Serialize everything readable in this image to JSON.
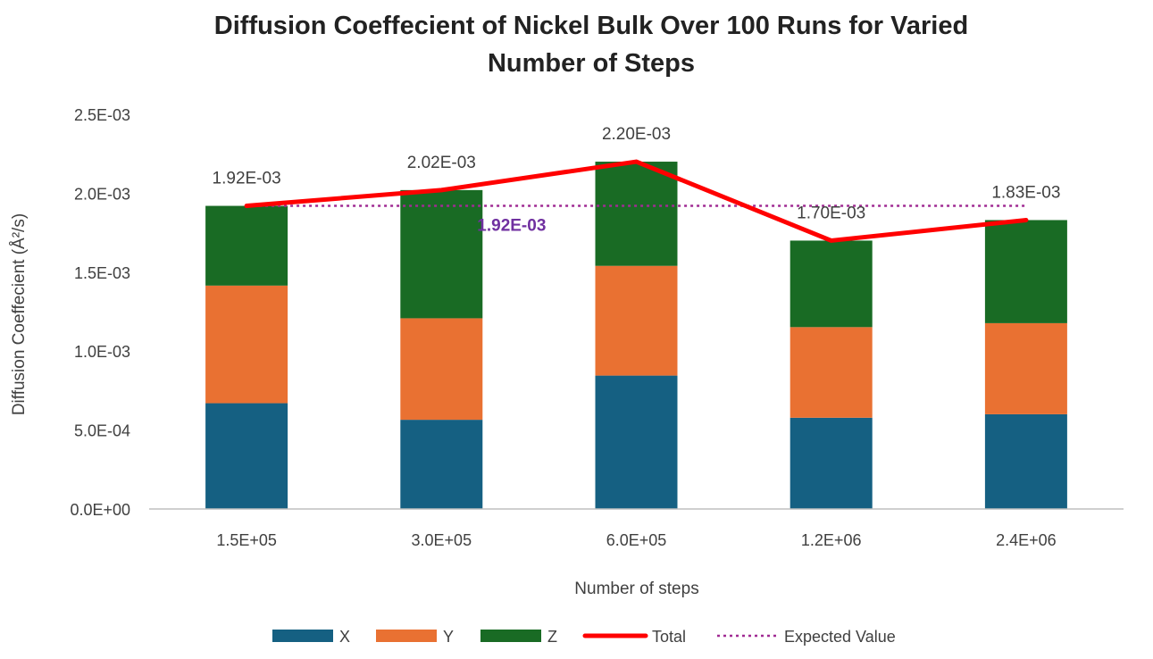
{
  "chart_data": {
    "type": "bar",
    "stacked": true,
    "title": "Diffusion Coeffecient of Nickel Bulk Over 100 Runs for Varied Number of Steps",
    "title_lines": [
      "Diffusion Coeffecient of Nickel Bulk Over 100 Runs for Varied",
      "Number of Steps"
    ],
    "xlabel": "Number of steps",
    "ylabel": "Diffusion Coeffecient (Å²/s)",
    "categories": [
      "1.5E+05",
      "3.0E+05",
      "6.0E+05",
      "1.2E+06",
      "2.4E+06"
    ],
    "ylim": [
      0,
      0.0025
    ],
    "yticks": [
      0,
      0.0005,
      0.001,
      0.0015,
      0.002,
      0.0025
    ],
    "ytick_labels": [
      "0.0E+00",
      "5.0E-04",
      "1.0E-03",
      "1.5E-03",
      "2.0E-03",
      "2.5E-03"
    ],
    "grid": false,
    "series": [
      {
        "name": "X",
        "kind": "bar",
        "color": "#156082",
        "values": [
          0.00067,
          0.000565,
          0.000845,
          0.000578,
          0.0006
        ]
      },
      {
        "name": "Y",
        "kind": "bar",
        "color": "#E97132",
        "values": [
          0.000745,
          0.000643,
          0.000695,
          0.000574,
          0.000577
        ]
      },
      {
        "name": "Z",
        "kind": "bar",
        "color": "#196B24",
        "values": [
          0.000505,
          0.000812,
          0.00066,
          0.000548,
          0.000653
        ]
      },
      {
        "name": "Total",
        "kind": "line",
        "color": "#FF0000",
        "values": [
          0.00192,
          0.00202,
          0.0022,
          0.0017,
          0.00183
        ],
        "labels": [
          "1.92E-03",
          "2.02E-03",
          "2.20E-03",
          "1.70E-03",
          "1.83E-03"
        ]
      },
      {
        "name": "Expected Value",
        "kind": "line",
        "style": "dotted",
        "color": "#A02B93",
        "value": 0.00192
      }
    ],
    "expected_label": "1.92E-03",
    "expected_label_color": "#7030A0",
    "legend_position": "bottom"
  }
}
